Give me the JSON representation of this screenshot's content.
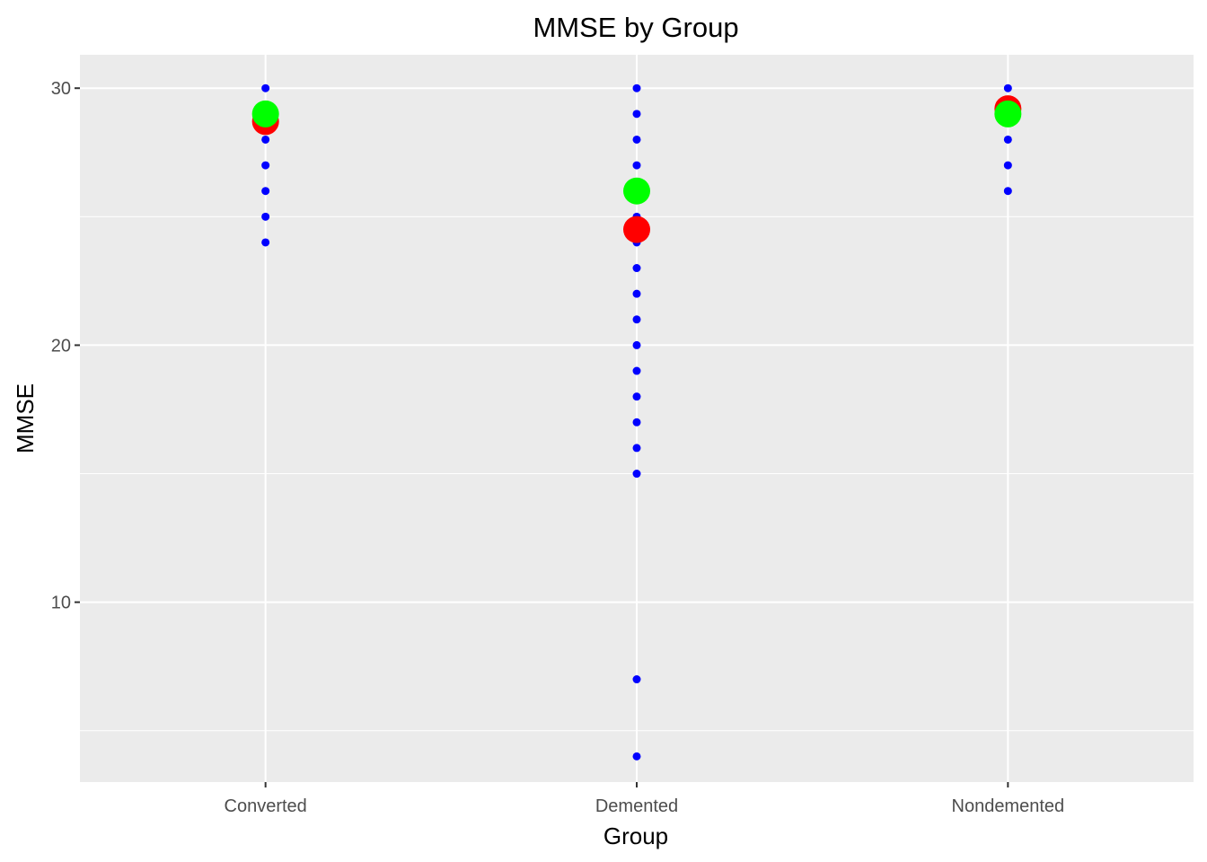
{
  "chart_data": {
    "type": "scatter",
    "title": "MMSE by Group",
    "xlabel": "Group",
    "ylabel": "MMSE",
    "categories": [
      "Converted",
      "Demented",
      "Nondemented"
    ],
    "y_ticks": [
      10,
      20,
      30
    ],
    "ylim": [
      3,
      31.3
    ],
    "grid": true,
    "legend": "none",
    "colors": {
      "panel": "#ebebeb",
      "grid": "#ffffff",
      "points": "#0000ff",
      "mean": "#ff0000",
      "median": "#00ff00",
      "tick_text": "#4d4d4d",
      "tick_mark": "#333333"
    },
    "series": [
      {
        "values": [
          {
            "category": "Converted",
            "y": [
              24,
              25,
              26,
              27,
              28,
              29,
              30
            ]
          },
          {
            "category": "Demented",
            "y": [
              4,
              7,
              15,
              16,
              17,
              18,
              19,
              20,
              21,
              22,
              23,
              24,
              25,
              26,
              27,
              28,
              29,
              30
            ]
          },
          {
            "category": "Nondemented",
            "y": [
              26,
              27,
              28,
              29,
              30
            ]
          }
        ]
      },
      {
        "values": [
          {
            "category": "Converted",
            "y": 28.7
          },
          {
            "category": "Demented",
            "y": 24.5
          },
          {
            "category": "Nondemented",
            "y": 29.2
          }
        ]
      },
      {
        "values": [
          {
            "category": "Converted",
            "y": 29
          },
          {
            "category": "Demented",
            "y": 26
          },
          {
            "category": "Nondemented",
            "y": 29
          }
        ]
      }
    ]
  }
}
